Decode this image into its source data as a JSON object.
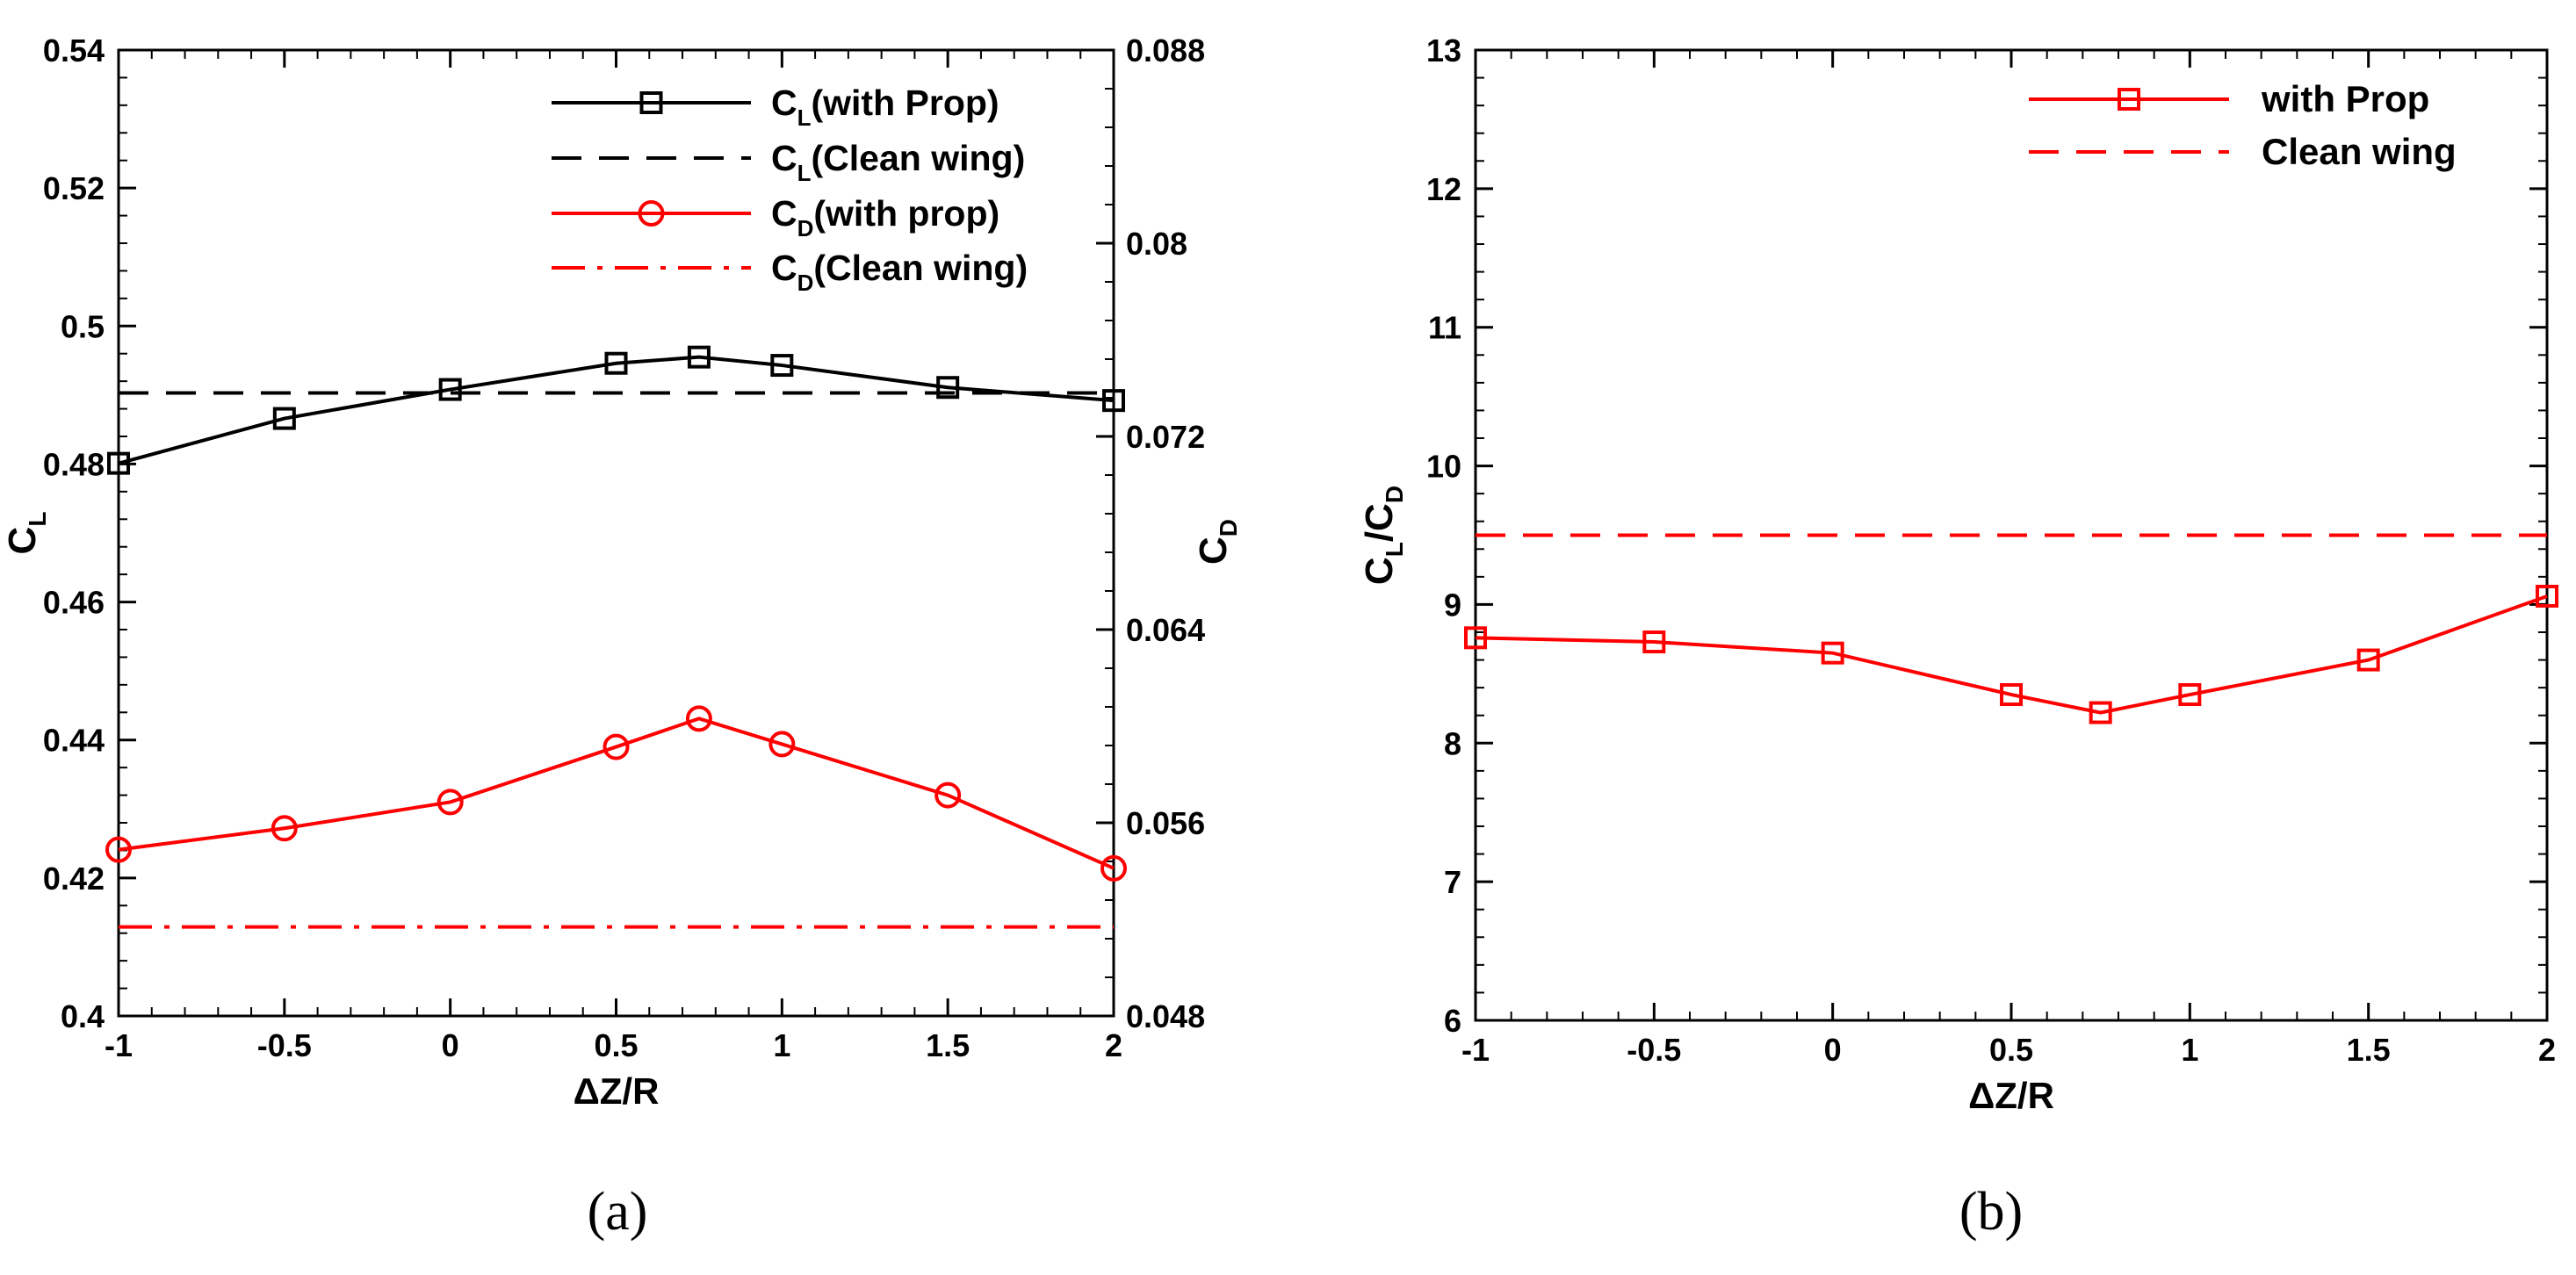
{
  "chart_data": [
    {
      "type": "line",
      "panel_label": "(a)",
      "xlabel": "ΔZ/R",
      "ylabel_left": {
        "main": "C",
        "sub": "L"
      },
      "ylabel_right": {
        "main": "C",
        "sub": "D"
      },
      "xlim": [
        -1,
        2
      ],
      "ylim_left": [
        0.4,
        0.54
      ],
      "ylim_right": [
        0.048,
        0.088
      ],
      "x_ticks": [
        "-1",
        "-0.5",
        "0",
        "0.5",
        "1",
        "1.5",
        "2"
      ],
      "y_left_ticks": [
        "0.4",
        "0.42",
        "0.44",
        "0.46",
        "0.48",
        "0.5",
        "0.52",
        "0.54"
      ],
      "y_right_ticks": [
        "0.048",
        "0.056",
        "0.064",
        "0.072",
        "0.08",
        "0.088"
      ],
      "series": [
        {
          "name": "C_L(with Prop)",
          "legend": {
            "main": "C",
            "sub": "L",
            "rest": "(with Prop)"
          },
          "axis": "left",
          "color": "#000000",
          "style": "solid",
          "marker": "square",
          "x": [
            -1,
            -0.5,
            0,
            0.5,
            0.75,
            1,
            1.5,
            2
          ],
          "y": [
            0.4801,
            0.4866,
            0.4908,
            0.4946,
            0.4955,
            0.4943,
            0.4911,
            0.4892
          ]
        },
        {
          "name": "C_L(Clean wing)",
          "legend": {
            "main": "C",
            "sub": "L",
            "rest": "(Clean wing)"
          },
          "axis": "left",
          "color": "#000000",
          "style": "dashed",
          "marker": "none",
          "x": [
            -1,
            2
          ],
          "y": [
            0.4903,
            0.4903
          ]
        },
        {
          "name": "C_D(with prop)",
          "legend": {
            "main": "C",
            "sub": "D",
            "rest": "(with prop)"
          },
          "axis": "left",
          "color": "#ff0000",
          "style": "solid",
          "marker": "circle",
          "x": [
            -1,
            -0.5,
            0,
            0.5,
            0.75,
            1,
            1.5,
            2
          ],
          "y": [
            0.4241,
            0.4272,
            0.431,
            0.439,
            0.4431,
            0.4394,
            0.432,
            0.4214
          ]
        },
        {
          "name": "C_D(Clean wing)",
          "legend": {
            "main": "C",
            "sub": "D",
            "rest": "(Clean wing)"
          },
          "axis": "left",
          "color": "#ff0000",
          "style": "dashdot",
          "marker": "none",
          "x": [
            -1,
            2
          ],
          "y": [
            0.4129,
            0.4129
          ]
        }
      ]
    },
    {
      "type": "line",
      "panel_label": "(b)",
      "xlabel": "ΔZ/R",
      "ylabel_left": {
        "main": "C",
        "sub": "L",
        "mid": "/C",
        "sub2": "D"
      },
      "xlim": [
        -1,
        2
      ],
      "ylim": [
        6,
        13
      ],
      "x_ticks": [
        "-1",
        "-0.5",
        "0",
        "0.5",
        "1",
        "1.5",
        "2"
      ],
      "y_ticks": [
        "6",
        "7",
        "8",
        "9",
        "10",
        "11",
        "12",
        "13"
      ],
      "series": [
        {
          "name": "with Prop",
          "color": "#ff0000",
          "style": "solid",
          "marker": "square",
          "x": [
            -1,
            -0.5,
            0,
            0.5,
            0.75,
            1,
            1.5,
            2
          ],
          "y": [
            8.76,
            8.73,
            8.65,
            8.35,
            8.22,
            8.35,
            8.6,
            9.06
          ]
        },
        {
          "name": "Clean wing",
          "color": "#ff0000",
          "style": "dashed",
          "marker": "none",
          "x": [
            -1,
            2
          ],
          "y": [
            9.5,
            9.5
          ]
        }
      ]
    }
  ]
}
